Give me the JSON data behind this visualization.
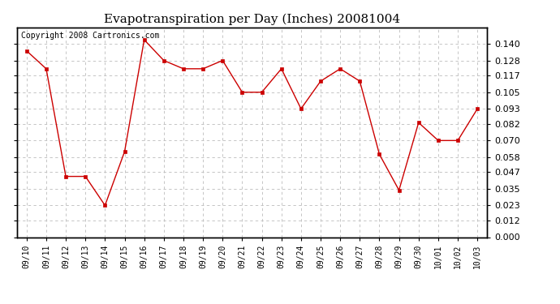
{
  "title": "Evapotranspiration per Day (Inches) 20081004",
  "copyright_text": "Copyright 2008 Cartronics.com",
  "labels": [
    "09/10",
    "09/11",
    "09/12",
    "09/13",
    "09/14",
    "09/15",
    "09/16",
    "09/17",
    "09/18",
    "09/19",
    "09/20",
    "09/21",
    "09/22",
    "09/23",
    "09/24",
    "09/25",
    "09/26",
    "09/27",
    "09/28",
    "09/29",
    "09/30",
    "10/01",
    "10/02",
    "10/03"
  ],
  "values": [
    0.135,
    0.122,
    0.044,
    0.044,
    0.023,
    0.062,
    0.143,
    0.128,
    0.122,
    0.122,
    0.128,
    0.105,
    0.105,
    0.122,
    0.093,
    0.113,
    0.122,
    0.113,
    0.06,
    0.034,
    0.083,
    0.07,
    0.07,
    0.093
  ],
  "line_color": "#cc0000",
  "marker": "s",
  "marker_size": 3,
  "background_color": "#ffffff",
  "grid_color": "#bbbbbb",
  "ylim": [
    0.0,
    0.152
  ],
  "yticks": [
    0.0,
    0.012,
    0.023,
    0.035,
    0.047,
    0.058,
    0.07,
    0.082,
    0.093,
    0.105,
    0.117,
    0.128,
    0.14
  ],
  "title_fontsize": 11,
  "copyright_fontsize": 7,
  "tick_fontsize": 8,
  "xtick_fontsize": 7
}
